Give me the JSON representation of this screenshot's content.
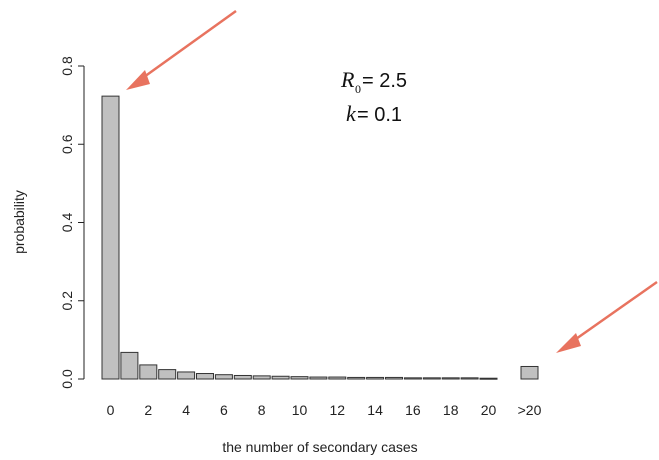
{
  "chart_data": {
    "type": "bar",
    "xlabel": "the number of secondary cases",
    "ylabel": "probability",
    "ylim": [
      0,
      0.8
    ],
    "yticks": [
      "0.0",
      "0.2",
      "0.4",
      "0.6",
      "0.8"
    ],
    "categories": [
      "0",
      "1",
      "2",
      "3",
      "4",
      "5",
      "6",
      "7",
      "8",
      "9",
      "10",
      "11",
      "12",
      "13",
      "14",
      "15",
      "16",
      "17",
      "18",
      "19",
      "20",
      ">20"
    ],
    "xtick_labels": [
      "0",
      "2",
      "4",
      "6",
      "8",
      "10",
      "12",
      "14",
      "16",
      "18",
      "20",
      ">20"
    ],
    "values": [
      0.723,
      0.068,
      0.036,
      0.024,
      0.018,
      0.014,
      0.011,
      0.009,
      0.008,
      0.007,
      0.006,
      0.005,
      0.005,
      0.004,
      0.004,
      0.004,
      0.003,
      0.003,
      0.003,
      0.003,
      0.002,
      0.032
    ],
    "bar_color": "#c0c0c0",
    "bar_stroke": "#333333",
    "arrow_color": "#e8735f",
    "annotation": {
      "r_symbol": "R",
      "r_sub": "0",
      "r_value": " = 2.5",
      "k_symbol": "k",
      "k_value": " = 0.1"
    }
  }
}
